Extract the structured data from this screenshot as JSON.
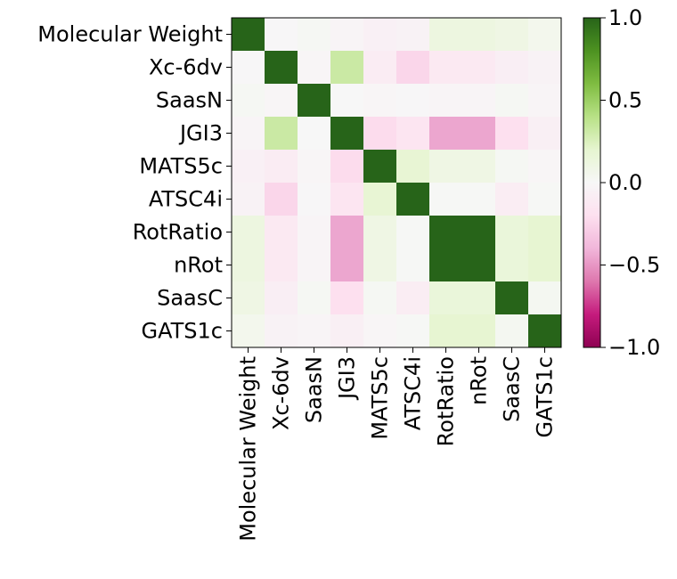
{
  "chart_data": {
    "type": "heatmap",
    "title": "",
    "xlabel": "",
    "ylabel": "",
    "rows": [
      "Molecular Weight",
      "Xc-6dv",
      "SaasN",
      "JGI3",
      "MATS5c",
      "ATSC4i",
      "RotRatio",
      "nRot",
      "SaasC",
      "GATS1c"
    ],
    "cols": [
      "Molecular Weight",
      "Xc-6dv",
      "SaasN",
      "JGI3",
      "MATS5c",
      "ATSC4i",
      "RotRatio",
      "nRot",
      "SaasC",
      "GATS1c"
    ],
    "values": [
      [
        1.0,
        -0.01,
        0.02,
        -0.03,
        -0.06,
        -0.04,
        0.12,
        0.12,
        0.1,
        0.05
      ],
      [
        -0.01,
        1.0,
        -0.02,
        0.32,
        -0.1,
        -0.25,
        -0.12,
        -0.12,
        -0.08,
        -0.04
      ],
      [
        0.02,
        -0.02,
        1.0,
        0.0,
        -0.02,
        -0.01,
        -0.03,
        -0.03,
        0.02,
        -0.03
      ],
      [
        -0.03,
        0.32,
        0.0,
        1.0,
        -0.22,
        -0.16,
        -0.45,
        -0.45,
        -0.2,
        -0.07
      ],
      [
        -0.06,
        -0.1,
        -0.02,
        -0.22,
        1.0,
        0.18,
        0.1,
        0.1,
        0.02,
        -0.02
      ],
      [
        -0.04,
        -0.25,
        -0.01,
        -0.16,
        0.18,
        1.0,
        0.01,
        0.01,
        -0.09,
        0.01
      ],
      [
        0.12,
        -0.12,
        -0.03,
        -0.45,
        0.1,
        0.01,
        1.0,
        1.0,
        0.15,
        0.19
      ],
      [
        0.12,
        -0.12,
        -0.03,
        -0.45,
        0.1,
        0.01,
        1.0,
        1.0,
        0.15,
        0.19
      ],
      [
        0.1,
        -0.08,
        0.02,
        -0.2,
        0.02,
        -0.09,
        0.15,
        0.15,
        1.0,
        0.03
      ],
      [
        0.05,
        -0.04,
        -0.03,
        -0.07,
        -0.02,
        0.01,
        0.19,
        0.19,
        0.03,
        1.0
      ]
    ],
    "vmin": -1.0,
    "vmax": 1.0,
    "colormap": "PiYG",
    "colorbar_ticks": [
      "1.0",
      "0.5",
      "0.0",
      "−0.5",
      "−1.0"
    ],
    "colorbar_tick_values": [
      1.0,
      0.5,
      0.0,
      -0.5,
      -1.0
    ],
    "grid": false,
    "legend": "colorbar-right"
  }
}
